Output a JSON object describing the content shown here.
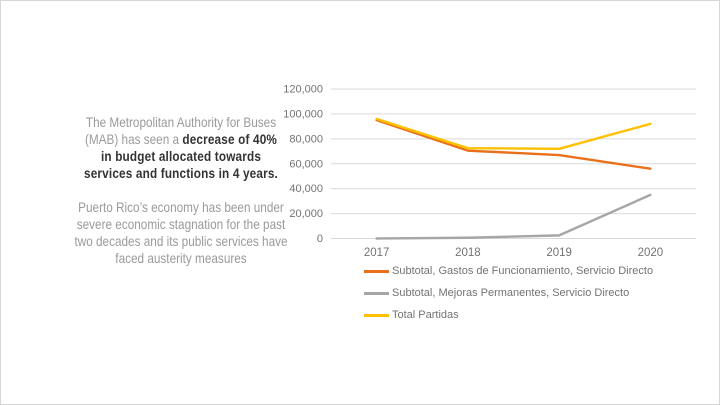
{
  "text_panel": {
    "para1_regular": "The Metropolitan Authority for Buses\n(MAB) has seen a ",
    "para1_bold": "decrease of 40%\nin budget allocated towards\nservices and functions in 4 years.",
    "para2": "Puerto Rico’s economy has been under\nsevere economic stagnation for the past\ntwo decades and its public services have\nfaced austerity measures"
  },
  "colors": {
    "accent_orange": "#E8711A",
    "accent_yellow": "#FFC000",
    "accent_gray": "#A6A6A6",
    "gridline": "#D9D9D9",
    "axis_text": "#737373"
  },
  "chart_data": {
    "type": "line",
    "x": [
      "2017",
      "2018",
      "2019",
      "2020"
    ],
    "series": [
      {
        "name": "Subtotal, Gastos de Funcionamiento, Servicio Directo",
        "color": "#E8711A",
        "values": [
          95000,
          70500,
          67000,
          56000
        ]
      },
      {
        "name": "Subtotal, Mejoras Permanentes, Servicio Directo",
        "color": "#A6A6A6",
        "values": [
          0,
          600,
          2500,
          35000
        ]
      },
      {
        "name": "Total Partidas",
        "color": "#FFC000",
        "values": [
          96000,
          72500,
          72000,
          92000
        ]
      }
    ],
    "title": "",
    "xlabel": "",
    "ylabel": "",
    "ylim": [
      0,
      120000
    ],
    "ytick_step": 20000,
    "ytick_labels": [
      "0",
      "20,000",
      "40,000",
      "60,000",
      "80,000",
      "100,000",
      "120,000"
    ],
    "grid": true,
    "legend_position": "bottom-left"
  }
}
